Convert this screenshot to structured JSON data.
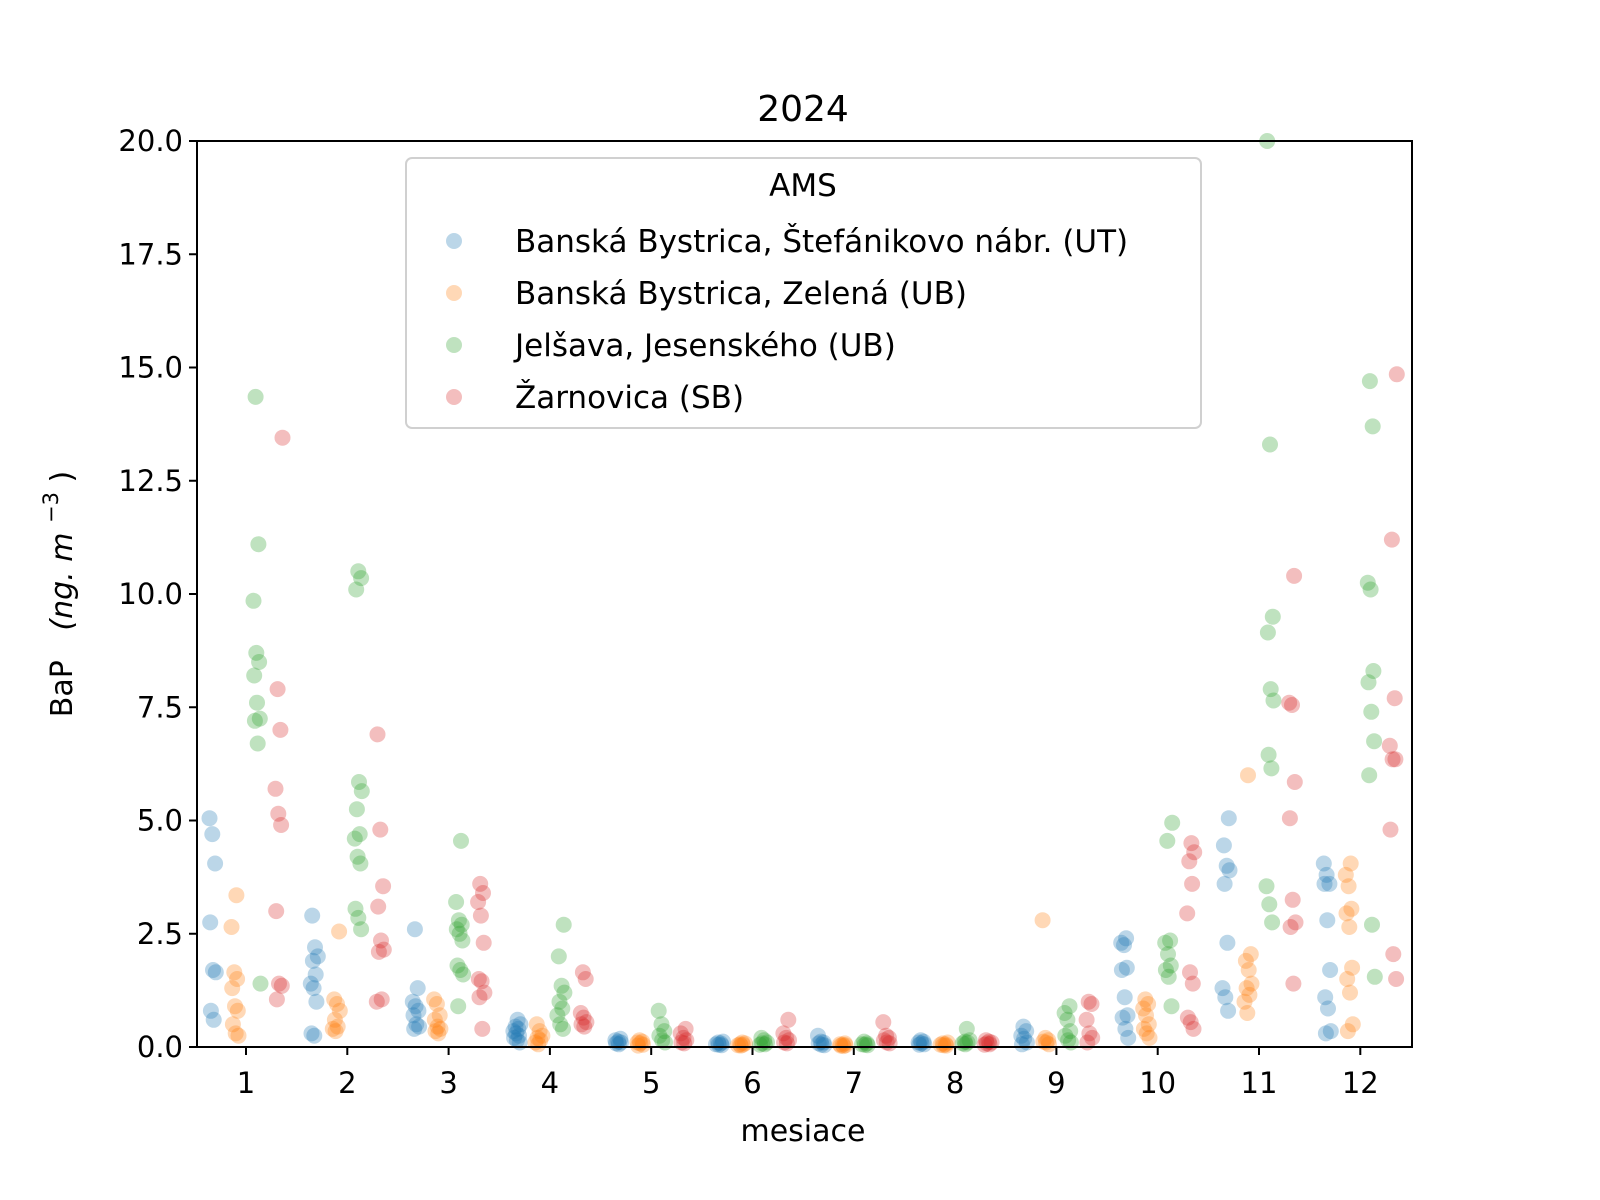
{
  "chart_data": {
    "type": "scatter",
    "title": "2024",
    "xlabel": "mesiace",
    "ylabel_main": "BaP",
    "ylabel_unit": "(ng. m",
    "ylabel_unit_sup": "−3",
    "ylabel_unit_close": ")",
    "categories": [
      "1",
      "2",
      "3",
      "4",
      "5",
      "6",
      "7",
      "8",
      "9",
      "10",
      "11",
      "12"
    ],
    "ylim": [
      0,
      20
    ],
    "yticks": [
      "0.0",
      "2.5",
      "5.0",
      "7.5",
      "10.0",
      "12.5",
      "15.0",
      "17.5",
      "20.0"
    ],
    "grid": false,
    "legend": {
      "title": "AMS",
      "placement": "top-center"
    },
    "series": [
      {
        "name": "Banská Bystrica, Štefánikovo nábr. (UT)",
        "color": "#1f77b4",
        "values": [
          [
            5.05,
            4.7,
            4.05,
            2.75,
            1.7,
            1.65,
            0.8,
            0.6
          ],
          [
            2.9,
            2.2,
            2.0,
            1.9,
            1.6,
            1.4,
            1.3,
            1.0,
            0.3,
            0.25
          ],
          [
            2.6,
            1.3,
            1.0,
            0.9,
            0.8,
            0.7,
            0.5,
            0.45,
            0.4
          ],
          [
            0.6,
            0.5,
            0.45,
            0.4,
            0.35,
            0.3,
            0.25,
            0.2,
            0.15,
            0.1
          ],
          [
            0.18,
            0.15,
            0.12,
            0.1,
            0.08,
            0.06
          ],
          [
            0.12,
            0.1,
            0.08,
            0.06,
            0.05,
            0.04
          ],
          [
            0.25,
            0.12,
            0.1,
            0.08,
            0.05,
            0.04
          ],
          [
            0.15,
            0.12,
            0.1,
            0.08,
            0.06,
            0.05
          ],
          [
            0.45,
            0.35,
            0.25,
            0.18,
            0.1,
            0.06
          ],
          [
            2.4,
            2.3,
            2.25,
            1.75,
            1.7,
            1.1,
            0.7,
            0.65,
            0.4,
            0.2
          ],
          [
            5.05,
            4.45,
            4.0,
            3.9,
            3.6,
            2.3,
            1.3,
            1.1,
            0.8
          ],
          [
            4.05,
            3.8,
            3.6,
            3.6,
            2.8,
            1.7,
            1.1,
            0.85,
            0.35,
            0.3
          ]
        ]
      },
      {
        "name": "Banská Bystrica, Zelená (UB)",
        "color": "#ff7f0e",
        "values": [
          [
            3.35,
            2.65,
            1.65,
            1.5,
            1.3,
            0.9,
            0.8,
            0.5,
            0.3,
            0.25
          ],
          [
            2.55,
            1.05,
            0.95,
            0.8,
            0.6,
            0.45,
            0.4,
            0.35
          ],
          [
            1.05,
            0.95,
            0.7,
            0.6,
            0.45,
            0.4,
            0.35,
            0.3
          ],
          [
            0.5,
            0.35,
            0.25,
            0.2,
            0.15,
            0.1,
            0.06
          ],
          [
            0.15,
            0.12,
            0.1,
            0.08,
            0.05,
            0.03
          ],
          [
            0.1,
            0.08,
            0.06,
            0.05,
            0.04,
            0.03
          ],
          [
            0.08,
            0.06,
            0.05,
            0.04,
            0.03,
            0.02
          ],
          [
            0.1,
            0.08,
            0.06,
            0.05,
            0.04,
            0.03
          ],
          [
            2.8,
            0.2,
            0.15,
            0.12,
            0.1,
            0.06
          ],
          [
            1.05,
            0.95,
            0.85,
            0.7,
            0.5,
            0.4,
            0.3,
            0.2
          ],
          [
            6.0,
            2.05,
            1.9,
            1.7,
            1.4,
            1.3,
            1.15,
            1.0,
            0.75
          ],
          [
            4.05,
            3.8,
            3.55,
            3.05,
            2.95,
            2.65,
            1.75,
            1.5,
            1.2,
            0.5,
            0.35
          ]
        ]
      },
      {
        "name": "Jelšava, Jesenského (UB)",
        "color": "#2ca02c",
        "values": [
          [
            14.35,
            11.1,
            9.85,
            8.7,
            8.5,
            8.2,
            7.6,
            7.25,
            7.2,
            6.7,
            1.4
          ],
          [
            10.5,
            10.35,
            10.1,
            5.85,
            5.65,
            5.25,
            4.7,
            4.6,
            4.2,
            4.05,
            3.05,
            2.85,
            2.6
          ],
          [
            4.55,
            3.2,
            2.8,
            2.7,
            2.6,
            2.5,
            2.35,
            1.8,
            1.7,
            1.6,
            0.9
          ],
          [
            2.7,
            2.0,
            1.35,
            1.2,
            1.0,
            0.85,
            0.7,
            0.5,
            0.4
          ],
          [
            0.8,
            0.5,
            0.35,
            0.25,
            0.15,
            0.1
          ],
          [
            0.2,
            0.15,
            0.1,
            0.08,
            0.06,
            0.05
          ],
          [
            0.12,
            0.08,
            0.06,
            0.05,
            0.04
          ],
          [
            0.4,
            0.15,
            0.12,
            0.1,
            0.08,
            0.06
          ],
          [
            0.9,
            0.75,
            0.6,
            0.35,
            0.25,
            0.15,
            0.1
          ],
          [
            4.95,
            4.55,
            2.35,
            2.3,
            2.05,
            1.8,
            1.7,
            1.55,
            0.9
          ],
          [
            20.0,
            13.3,
            9.5,
            9.15,
            7.9,
            7.65,
            6.45,
            6.15,
            3.55,
            3.15,
            2.75
          ],
          [
            14.7,
            13.7,
            10.25,
            10.1,
            8.3,
            8.05,
            7.4,
            6.75,
            6.0,
            2.7,
            1.55
          ]
        ]
      },
      {
        "name": "Žarnovica (SB)",
        "color": "#d62728",
        "values": [
          [
            13.45,
            7.9,
            7.0,
            5.7,
            5.15,
            4.9,
            3.0,
            1.4,
            1.35,
            1.05
          ],
          [
            6.9,
            4.8,
            3.55,
            3.1,
            2.35,
            2.15,
            2.1,
            1.05,
            1.0
          ],
          [
            3.6,
            3.4,
            3.2,
            2.9,
            2.3,
            1.5,
            1.45,
            1.2,
            1.1,
            0.4
          ],
          [
            1.65,
            1.5,
            0.75,
            0.65,
            0.55,
            0.5,
            0.45
          ],
          [
            0.4,
            0.3,
            0.2,
            0.15,
            0.1,
            0.08
          ],
          [
            0.6,
            0.3,
            0.2,
            0.15,
            0.1,
            0.08
          ],
          [
            0.55,
            0.25,
            0.2,
            0.15,
            0.1,
            0.08
          ],
          [
            0.15,
            0.12,
            0.1,
            0.08,
            0.06,
            0.05
          ],
          [
            1.0,
            0.95,
            0.6,
            0.3,
            0.2,
            0.1
          ],
          [
            4.5,
            4.3,
            4.1,
            3.6,
            2.95,
            1.65,
            1.4,
            0.65,
            0.55,
            0.4
          ],
          [
            10.4,
            7.6,
            7.55,
            5.85,
            5.05,
            3.25,
            2.75,
            2.65,
            1.4
          ],
          [
            14.85,
            11.2,
            7.7,
            6.65,
            6.35,
            6.35,
            4.8,
            2.05,
            1.5
          ]
        ]
      }
    ]
  }
}
